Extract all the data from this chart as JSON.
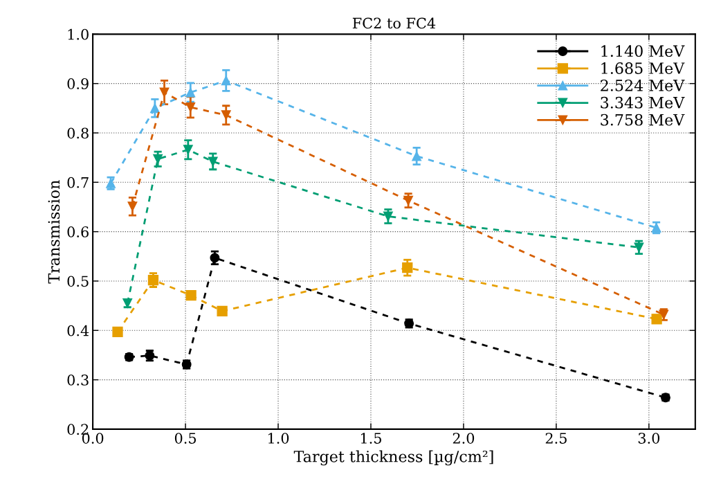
{
  "chart_data": {
    "type": "line",
    "title": "FC2 to FC4",
    "xlabel": "Target thickness [µg/cm²]",
    "ylabel": "Transmission",
    "xlim": [
      0,
      3.25
    ],
    "ylim": [
      0.2,
      1.0
    ],
    "xticks": [
      {
        "value": 0,
        "label": "0.0"
      },
      {
        "value": 0.5,
        "label": "0.5"
      },
      {
        "value": 1,
        "label": "1.0"
      },
      {
        "value": 1.5,
        "label": "1.5"
      },
      {
        "value": 2,
        "label": "2.0"
      },
      {
        "value": 2.5,
        "label": "2.5"
      },
      {
        "value": 3,
        "label": "3.0"
      }
    ],
    "yticks": [
      {
        "value": 0.2,
        "label": "0.2"
      },
      {
        "value": 0.3,
        "label": "0.3"
      },
      {
        "value": 0.4,
        "label": "0.4"
      },
      {
        "value": 0.5,
        "label": "0.5"
      },
      {
        "value": 0.6,
        "label": "0.6"
      },
      {
        "value": 0.7,
        "label": "0.7"
      },
      {
        "value": 0.8,
        "label": "0.8"
      },
      {
        "value": 0.9,
        "label": "0.9"
      },
      {
        "value": 1,
        "label": "1.0"
      }
    ],
    "grid": true,
    "legend": "top right",
    "line_style": "dashed",
    "series": [
      {
        "name": "1.140 MeV",
        "color": "#000000",
        "marker": "circle",
        "x": [
          0.196,
          0.307,
          0.506,
          0.658,
          1.706,
          3.09
        ],
        "values": [
          0.346,
          0.349,
          0.331,
          0.547,
          0.414,
          0.264
        ],
        "errors": [
          0.006,
          0.01,
          0.008,
          0.013,
          0.008,
          0.006
        ]
      },
      {
        "name": "1.685 MeV",
        "color": "#e69f00",
        "marker": "square",
        "x": [
          0.134,
          0.326,
          0.53,
          0.698,
          1.697,
          3.042
        ],
        "values": [
          0.397,
          0.502,
          0.471,
          0.439,
          0.527,
          0.423
        ],
        "errors": [
          0.006,
          0.014,
          0.008,
          0.008,
          0.016,
          0.008
        ]
      },
      {
        "name": "2.524 MeV",
        "color": "#56b4e9",
        "marker": "triangle",
        "x": [
          0.097,
          0.335,
          0.527,
          0.719,
          1.747,
          3.04
        ],
        "values": [
          0.698,
          0.85,
          0.882,
          0.906,
          0.753,
          0.608
        ],
        "errors": [
          0.012,
          0.018,
          0.019,
          0.021,
          0.017,
          0.011
        ]
      },
      {
        "name": "3.343 MeV",
        "color": "#009e73",
        "marker": "triangle_down",
        "x": [
          0.187,
          0.351,
          0.514,
          0.648,
          1.593,
          2.946
        ],
        "values": [
          0.455,
          0.747,
          0.766,
          0.742,
          0.631,
          0.568
        ],
        "errors": [
          0.008,
          0.015,
          0.019,
          0.016,
          0.014,
          0.013
        ]
      },
      {
        "name": "3.758 MeV",
        "color": "#d55e00",
        "marker": "triangle_down",
        "x": [
          0.214,
          0.386,
          0.527,
          0.719,
          1.702,
          3.08
        ],
        "values": [
          0.651,
          0.882,
          0.852,
          0.836,
          0.663,
          0.432
        ],
        "errors": [
          0.018,
          0.024,
          0.021,
          0.019,
          0.014,
          0.011
        ]
      }
    ]
  }
}
